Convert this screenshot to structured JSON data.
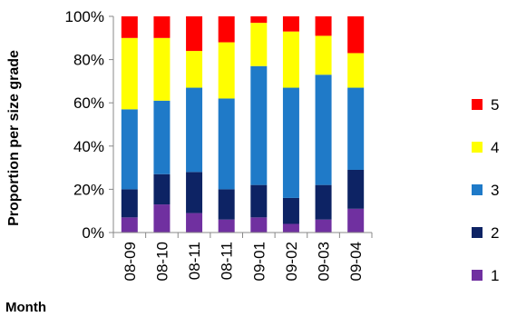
{
  "chart_data": {
    "type": "bar",
    "stacked": true,
    "percent": true,
    "xlabel": "Month",
    "ylabel": "Proportion per size grade",
    "ylim": [
      0,
      100
    ],
    "yticks": [
      "0%",
      "20%",
      "40%",
      "60%",
      "80%",
      "100%"
    ],
    "grid": false,
    "legend_position": "right",
    "categories": [
      "08-09",
      "08-10",
      "08-11",
      "08-11",
      "09-01",
      "09-02",
      "09-03",
      "09-04"
    ],
    "series": [
      {
        "name": "1",
        "color": "#7030a0",
        "values": [
          7,
          13,
          9,
          6,
          7,
          4,
          6,
          11
        ]
      },
      {
        "name": "2",
        "color": "#0d2364",
        "values": [
          13,
          14,
          19,
          14,
          15,
          12,
          16,
          18
        ]
      },
      {
        "name": "3",
        "color": "#1f7ac8",
        "values": [
          37,
          34,
          39,
          42,
          55,
          51,
          51,
          38
        ]
      },
      {
        "name": "4",
        "color": "#ffff00",
        "values": [
          33,
          29,
          17,
          26,
          20,
          26,
          18,
          16
        ]
      },
      {
        "name": "5",
        "color": "#ff0000",
        "values": [
          10,
          10,
          16,
          12,
          3,
          7,
          9,
          17
        ]
      }
    ]
  }
}
